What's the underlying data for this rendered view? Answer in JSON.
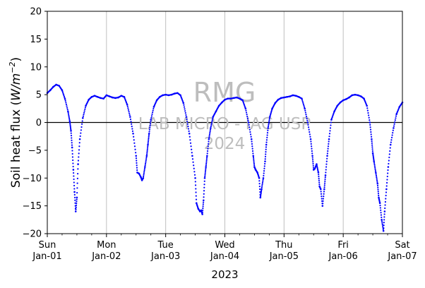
{
  "chart_data": {
    "type": "scatter",
    "ylabel_text": "Soil heat flux (",
    "ylabel_unit_base": "W/m",
    "ylabel_unit_exp": "−2",
    "ylabel_close": ")",
    "xlabel": "2023",
    "ylim": [
      -20,
      20
    ],
    "xlim": [
      0,
      6
    ],
    "y_ticks": [
      -20,
      -15,
      -10,
      -5,
      0,
      5,
      10,
      15,
      20
    ],
    "x_ticks": [
      {
        "x": 0,
        "day": "Sun",
        "date": "Jan-01"
      },
      {
        "x": 1,
        "day": "Mon",
        "date": "Jan-02"
      },
      {
        "x": 2,
        "day": "Tue",
        "date": "Jan-03"
      },
      {
        "x": 3,
        "day": "Wed",
        "date": "Jan-04"
      },
      {
        "x": 4,
        "day": "Thu",
        "date": "Jan-05"
      },
      {
        "x": 5,
        "day": "Fri",
        "date": "Jan-06"
      },
      {
        "x": 6,
        "day": "Sat",
        "date": "Jan-07"
      }
    ],
    "grid": "vertical at day boundaries",
    "reference_line_y": 0,
    "watermark": [
      "RMG",
      "LAB MICRO - IAG USP",
      "2024"
    ],
    "series_color": "#0000ff",
    "series": [
      {
        "x": [
          0,
          0.05,
          0.1,
          0.15,
          0.2,
          0.25,
          0.3,
          0.35,
          0.38,
          0.4,
          0.42,
          0.44,
          0.46,
          0.48,
          0.5,
          0.52,
          0.55,
          0.6,
          0.65,
          0.7,
          0.75,
          0.8,
          0.85,
          0.9,
          0.95,
          1.0,
          1.05,
          1.1,
          1.15,
          1.2,
          1.25,
          1.3,
          1.35,
          1.4,
          1.45,
          1.5,
          1.52,
          1.55,
          1.58,
          1.6,
          1.62,
          1.65,
          1.68,
          1.7,
          1.72,
          1.75,
          1.8,
          1.85,
          1.9,
          1.95,
          2.0,
          2.05,
          2.1,
          2.15,
          2.2,
          2.25,
          2.3,
          2.35,
          2.4,
          2.45,
          2.5,
          2.52,
          2.55,
          2.58,
          2.6,
          2.62,
          2.64,
          2.66,
          2.68,
          2.7,
          2.73,
          2.76,
          2.8,
          2.85,
          2.9,
          2.95,
          3.0,
          3.05,
          3.1,
          3.15,
          3.2,
          3.25,
          3.3,
          3.35,
          3.4,
          3.45,
          3.48,
          3.5,
          3.52,
          3.55,
          3.58,
          3.6,
          3.62,
          3.65,
          3.68,
          3.7,
          3.73,
          3.76,
          3.8,
          3.85,
          3.9,
          3.95,
          4.0,
          4.05,
          4.1,
          4.15,
          4.2,
          4.25,
          4.3,
          4.35,
          4.4,
          4.45,
          4.48,
          4.5,
          4.52,
          4.55,
          4.58,
          4.6,
          4.62,
          4.65,
          4.68,
          4.7,
          4.73,
          4.76,
          4.8,
          4.85,
          4.9,
          4.95,
          5.0,
          5.05,
          5.1,
          5.15,
          5.2,
          5.25,
          5.3,
          5.35,
          5.4,
          5.45,
          5.48,
          5.5,
          5.52,
          5.55,
          5.58,
          5.6,
          5.62,
          5.65,
          5.68,
          5.7,
          5.73,
          5.76,
          5.8,
          5.85,
          5.9,
          5.95,
          6.0
        ],
        "y": [
          5.3,
          5.8,
          6.4,
          6.8,
          6.6,
          5.8,
          4.2,
          2.0,
          0.2,
          -1.5,
          -4.5,
          -8.5,
          -12.5,
          -16.0,
          -13.5,
          -7.5,
          -3.0,
          0.8,
          3.0,
          4.1,
          4.6,
          4.8,
          4.6,
          4.4,
          4.3,
          4.9,
          4.7,
          4.5,
          4.4,
          4.5,
          4.8,
          4.6,
          3.2,
          1.0,
          -2.0,
          -6.0,
          -9.0,
          -9.2,
          -9.8,
          -10.4,
          -10.0,
          -8.0,
          -6.0,
          -4.0,
          -2.0,
          0.5,
          2.8,
          4.0,
          4.6,
          4.9,
          5.0,
          4.9,
          5.0,
          5.2,
          5.3,
          4.9,
          3.5,
          1.0,
          -2.0,
          -6.0,
          -10.0,
          -14.5,
          -15.5,
          -16.0,
          -15.8,
          -16.5,
          -14.0,
          -10.0,
          -8.0,
          -6.0,
          -3.0,
          -1.0,
          1.0,
          2.0,
          3.0,
          3.6,
          4.1,
          4.3,
          4.3,
          4.4,
          4.5,
          4.3,
          4.0,
          2.5,
          0.0,
          -3.0,
          -6.0,
          -8.0,
          -8.5,
          -9.0,
          -10.0,
          -13.5,
          -12.0,
          -10.0,
          -7.0,
          -4.0,
          -1.0,
          1.0,
          2.5,
          3.5,
          4.1,
          4.4,
          4.5,
          4.6,
          4.7,
          4.9,
          4.8,
          4.6,
          4.3,
          2.5,
          0.0,
          -3.0,
          -6.0,
          -8.5,
          -8.3,
          -7.5,
          -9.0,
          -11.5,
          -12.0,
          -15.0,
          -12.0,
          -9.5,
          -6.0,
          -3.0,
          0.5,
          2.0,
          3.0,
          3.6,
          4.0,
          4.2,
          4.5,
          4.9,
          5.0,
          4.9,
          4.7,
          4.3,
          3.0,
          0.0,
          -3.0,
          -5.5,
          -7.0,
          -9.0,
          -11.0,
          -13.5,
          -14.5,
          -17.5,
          -19.5,
          -16.0,
          -12.0,
          -8.0,
          -4.0,
          -1.0,
          1.5,
          2.8,
          3.6
        ]
      }
    ]
  }
}
